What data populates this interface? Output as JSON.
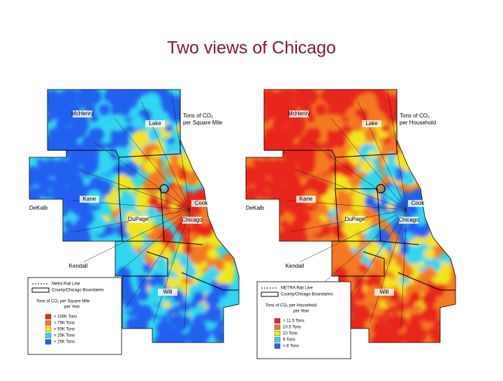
{
  "title": "Two views of Chicago",
  "maps": [
    {
      "note": [
        "Tons of CO₂",
        "per Square Mile"
      ],
      "places": [
        "McHenry",
        "Lake",
        "Kane",
        "Cook",
        "DeKalb",
        "DuPage",
        "Chicago",
        "Kendall",
        "Will"
      ],
      "legend": {
        "lines": [
          "Metra Rail Line",
          "County/Chicago Boundaries"
        ],
        "heading": [
          "Tons of CO₂ per Square Mile",
          "per Year"
        ],
        "classes": [
          {
            "label": "> 100K Tons",
            "color": "#e8261c"
          },
          {
            "label": "> 75K Tons",
            "color": "#f47a20"
          },
          {
            "label": "> 50K Tons",
            "color": "#f2e51d"
          },
          {
            "label": "> 25K Tons",
            "color": "#33d6f0"
          },
          {
            "label": "< 25K Tons",
            "color": "#2360f0"
          }
        ]
      }
    },
    {
      "note": [
        "Tons of CO₂",
        "per Household"
      ],
      "places": [
        "McHenry",
        "Lake",
        "Kane",
        "Cook",
        "DeKalb",
        "DuPage",
        "Chicago",
        "Kendall",
        "Will"
      ],
      "legend": {
        "lines": [
          "METRA Rail Line",
          "County/Chicago Boundaries"
        ],
        "heading": [
          "Tons of CO₂ per Household",
          "per Year"
        ],
        "classes": [
          {
            "label": "> 11.5 Tons",
            "color": "#e8261c"
          },
          {
            "label": "10.5 Tons",
            "color": "#f47a20"
          },
          {
            "label": "10 Tons",
            "color": "#f2e51d"
          },
          {
            "label": "9 Tons",
            "color": "#33d6f0"
          },
          {
            "label": "< 8 Tons",
            "color": "#2360f0"
          }
        ]
      }
    }
  ]
}
